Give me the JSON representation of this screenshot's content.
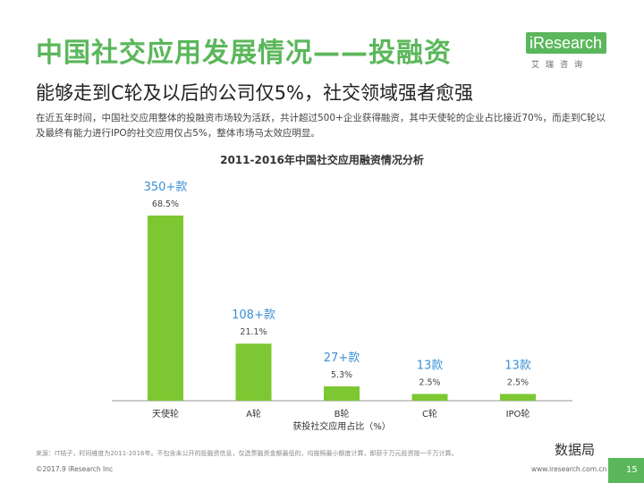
{
  "header": {
    "title": "中国社交应用发展情况——投融资",
    "subtitle": "能够走到C轮及以后的公司仅5%，社交领域强者愈强",
    "description": "在近五年时间，中国社交应用整体的投融资市场较为活跃，共计超过500+企业获得融资，其中天使轮的企业占比接近70%，而走到C轮以及最终有能力进行IPO的社交应用仅占5%，整体市场马太效应明显。"
  },
  "logo": {
    "text": "iResearch",
    "cn": "艾瑞咨询"
  },
  "chart_data": {
    "type": "bar",
    "title": "2011-2016年中国社交应用融资情况分析",
    "categories": [
      "天使轮",
      "A轮",
      "B轮",
      "C轮",
      "IPO轮"
    ],
    "values": [
      68.5,
      21.1,
      5.3,
      2.5,
      2.5
    ],
    "value_labels": [
      "68.5%",
      "21.1%",
      "5.3%",
      "2.5%",
      "2.5%"
    ],
    "count_labels": [
      "350+款",
      "108+款",
      "27+款",
      "13款",
      "13款"
    ],
    "xlabel": "获投社交应用占比（%）",
    "ylabel": "",
    "ylim": [
      0,
      68.5
    ],
    "grid": false,
    "bar_color": "#7dc832",
    "count_label_color": "#3b8fd4"
  },
  "footer": {
    "source": "来源：IT桔子，时间维度为2011-2016年。不包含未公开的投融资信息，仅选票融资金额最低的，均按照最小额度计算，即获于万元投资按一千万计算。",
    "copyright": "©2017.9 iResearch Inc",
    "website": "www.iresearch.com.cn",
    "page": "15",
    "watermark": "数据局"
  }
}
